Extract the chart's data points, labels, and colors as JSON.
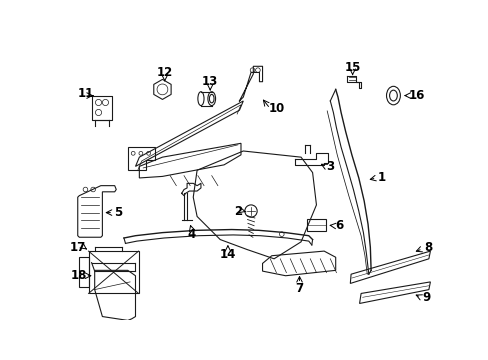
{
  "bg_color": "#ffffff",
  "line_color": "#1a1a1a",
  "parts": {
    "bumper_outer": {
      "x": [
        0.51,
        0.54,
        0.57,
        0.6,
        0.63,
        0.67,
        0.72,
        0.77,
        0.82,
        0.86,
        0.89,
        0.91,
        0.92
      ],
      "y": [
        0.88,
        0.87,
        0.86,
        0.84,
        0.82,
        0.79,
        0.75,
        0.7,
        0.63,
        0.56,
        0.48,
        0.4,
        0.32
      ]
    },
    "bumper_inner": {
      "x": [
        0.51,
        0.54,
        0.57,
        0.6,
        0.64,
        0.68,
        0.73,
        0.78,
        0.83,
        0.87,
        0.89,
        0.91
      ],
      "y": [
        0.84,
        0.83,
        0.82,
        0.8,
        0.77,
        0.74,
        0.7,
        0.65,
        0.58,
        0.51,
        0.43,
        0.35
      ]
    }
  },
  "label_fontsize": 8.5
}
